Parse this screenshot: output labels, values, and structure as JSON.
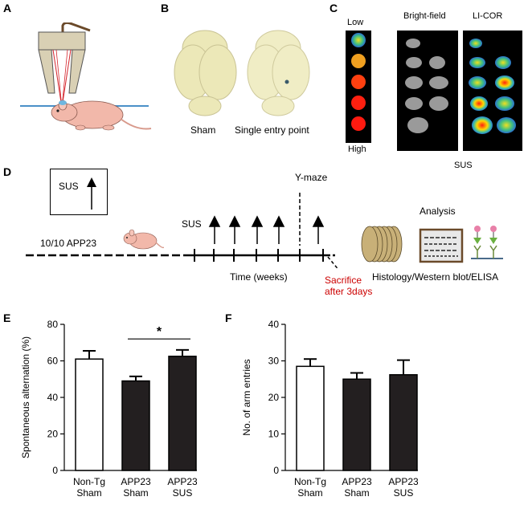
{
  "panels": {
    "A": {
      "letter": "A"
    },
    "B": {
      "letter": "B",
      "labels": [
        "Sham",
        "Single entry point"
      ]
    },
    "C": {
      "letter": "C",
      "scale_low": "Low",
      "scale_high": "High",
      "col_brightfield": "Bright-field",
      "col_licor": "LI-COR",
      "caption": "SUS"
    },
    "D": {
      "letter": "D",
      "legend_label": "SUS",
      "mouse_label": "10/10 APP23",
      "sus_label": "SUS",
      "ymaze_label": "Y-maze",
      "time_label": "Time (weeks)",
      "sacrifice_line1": "Sacrifice",
      "sacrifice_line2": "after 3days",
      "analysis_label": "Analysis",
      "methods_label": "Histology/Western blot/ELISA"
    },
    "E": {
      "letter": "E"
    },
    "F": {
      "letter": "F"
    }
  },
  "colors": {
    "sacrifice_text": "#cc0000",
    "bar_filled": "#231f20",
    "bar_open": "#ffffff",
    "axis_line": "#4a90c8"
  },
  "chart_data": [
    {
      "type": "bar",
      "panel": "E",
      "categories": [
        "Non-Tg\nSham",
        "APP23\nSham",
        "APP23\nSUS"
      ],
      "category_lines": [
        [
          "Non-Tg",
          "Sham"
        ],
        [
          "APP23",
          "Sham"
        ],
        [
          "APP23",
          "SUS"
        ]
      ],
      "values": [
        61,
        49,
        62.5
      ],
      "errors": [
        4.5,
        2.5,
        3.5
      ],
      "fills": [
        "open",
        "filled",
        "filled"
      ],
      "ylabel": "Spontaneous alternation (%)",
      "ylim": [
        0,
        80
      ],
      "yticks": [
        "0",
        "20",
        "40",
        "60",
        "80"
      ],
      "yticks_values": [
        0,
        20,
        40,
        60,
        80
      ],
      "significance": {
        "from": 1,
        "to": 2,
        "label": "*"
      }
    },
    {
      "type": "bar",
      "panel": "F",
      "categories": [
        "Non-Tg\nSham",
        "APP23\nSham",
        "APP23\nSUS"
      ],
      "category_lines": [
        [
          "Non-Tg",
          "Sham"
        ],
        [
          "APP23",
          "Sham"
        ],
        [
          "APP23",
          "SUS"
        ]
      ],
      "values": [
        28.5,
        25,
        26.2
      ],
      "errors": [
        2,
        1.7,
        4
      ],
      "fills": [
        "open",
        "filled",
        "filled"
      ],
      "ylabel": "No. of arm entries",
      "ylim": [
        0,
        40
      ],
      "yticks": [
        "0",
        "10",
        "20",
        "30",
        "40"
      ],
      "yticks_values": [
        0,
        10,
        20,
        30,
        40
      ]
    }
  ]
}
